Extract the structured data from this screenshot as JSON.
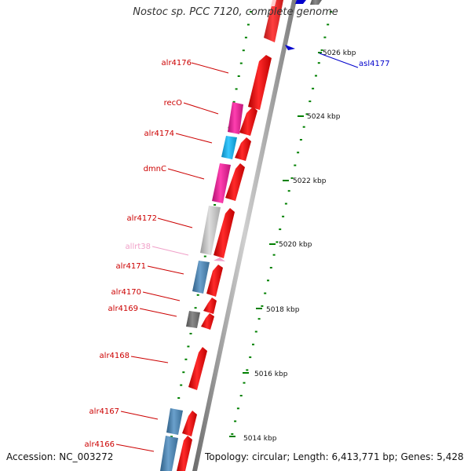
{
  "title": "Nostoc sp. PCC 7120, complete genome",
  "footer": {
    "accession": "Accession: NC_003272",
    "summary": "Topology: circular; Length: 6,413,771 bp; Genes: 5,428"
  },
  "ruler_labels": [
    "5026 kbp",
    "5024 kbp",
    "5022 kbp",
    "5020 kbp",
    "5018 kbp",
    "5016 kbp",
    "5014 kbp"
  ],
  "gene_labels": [
    {
      "text": "alr4176",
      "color": "#cc0000"
    },
    {
      "text": "recO",
      "color": "#cc0000"
    },
    {
      "text": "alr4174",
      "color": "#cc0000"
    },
    {
      "text": "dmnC",
      "color": "#cc0000"
    },
    {
      "text": "alr4172",
      "color": "#cc0000"
    },
    {
      "text": "allrt38",
      "color": "#f0a0c8"
    },
    {
      "text": "alr4171",
      "color": "#cc0000"
    },
    {
      "text": "alr4170",
      "color": "#cc0000"
    },
    {
      "text": "alr4169",
      "color": "#cc0000"
    },
    {
      "text": "alr4168",
      "color": "#cc0000"
    },
    {
      "text": "alr4167",
      "color": "#cc0000"
    },
    {
      "text": "alr4166",
      "color": "#cc0000"
    },
    {
      "text": "asl4177",
      "color": "#0000cc"
    }
  ],
  "colors": {
    "cds": "#ff0000",
    "magenta": "#e8199a",
    "cyan": "#14b4ee",
    "steelblue": "#4682b4",
    "lightgray": "#c0c0c0",
    "darkgray": "#707070",
    "pink": "#f0a0c8",
    "blue": "#0000cc",
    "backbone": "#808080",
    "tick": "#008000"
  }
}
